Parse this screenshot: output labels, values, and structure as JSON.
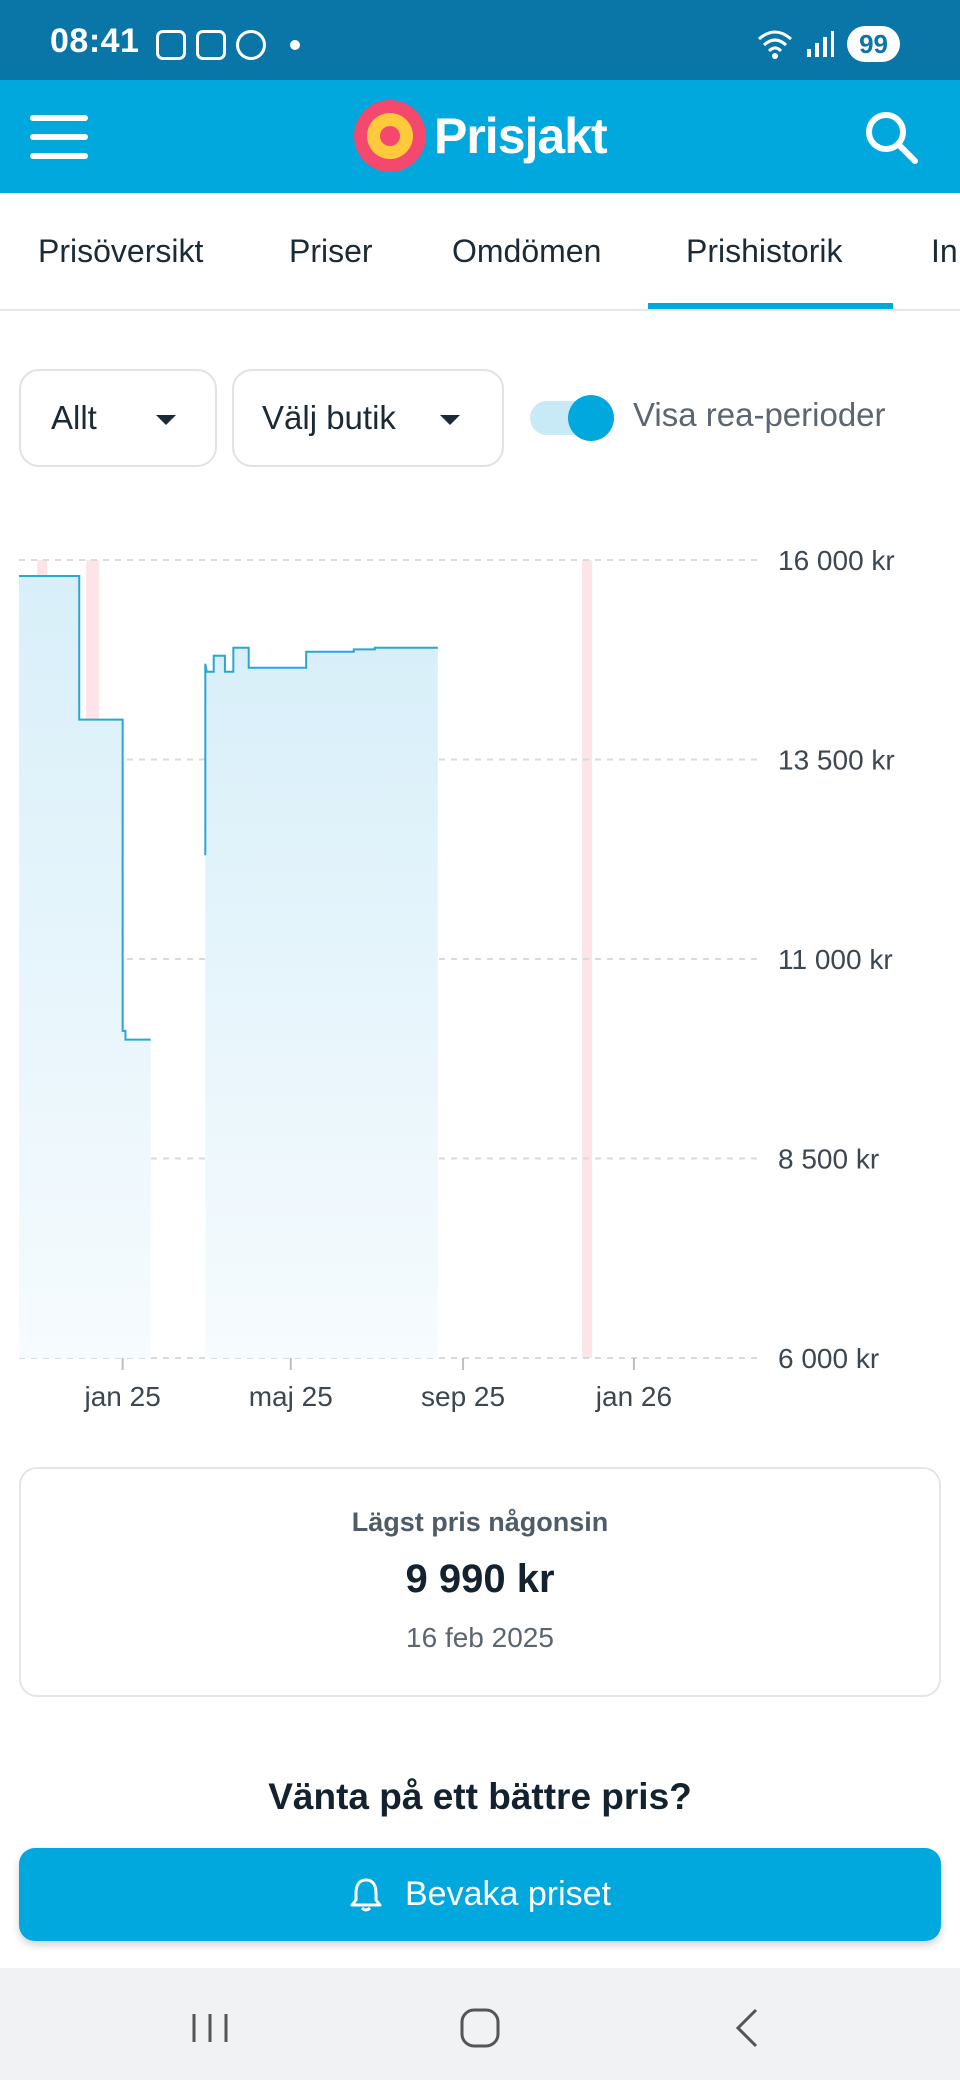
{
  "status_bar": {
    "time": "08:41",
    "battery": "99"
  },
  "header": {
    "logo_text": "Prisjakt",
    "menu_icon": "hamburger-icon",
    "search_icon": "search-icon"
  },
  "tabs": [
    {
      "label": "Prisöversikt",
      "active": false
    },
    {
      "label": "Priser",
      "active": false
    },
    {
      "label": "Omdömen",
      "active": false
    },
    {
      "label": "Prishistorik",
      "active": true
    },
    {
      "label": "In",
      "active": false
    }
  ],
  "filters": {
    "period": "Allt",
    "store": "Välj butik",
    "toggle_label": "Visa rea-perioder",
    "toggle_on": true
  },
  "chart_data": {
    "type": "line",
    "y_tick_labels": [
      "16 000 kr",
      "13 500 kr",
      "11 000 kr",
      "8 500 kr",
      "6 000 kr"
    ],
    "ylim": [
      6000,
      16000
    ],
    "x_tick_labels": [
      "jan 25",
      "maj 25",
      "sep 25",
      "jan 26"
    ],
    "series": [
      {
        "x": [
          "2024-10-19",
          "2024-12-01",
          "2024-12-01",
          "2025-01-01",
          "2025-01-01",
          "2025-01-03",
          "2025-01-03",
          "2025-01-21",
          "2025-03-01",
          "2025-03-01",
          "2025-03-02",
          "2025-03-07",
          "2025-03-07",
          "2025-03-15",
          "2025-03-15",
          "2025-03-21",
          "2025-03-21",
          "2025-04-01",
          "2025-04-01",
          "2025-04-06",
          "2025-04-06",
          "2025-05-12",
          "2025-05-12",
          "2025-06-15",
          "2025-06-15",
          "2025-06-30",
          "2025-06-30",
          "2025-08-14"
        ],
        "y": [
          15800,
          15800,
          14000,
          14000,
          10100,
          10100,
          9990,
          9990,
          12300,
          14700,
          14600,
          14600,
          14800,
          14800,
          14600,
          14600,
          14900,
          14900,
          14650,
          14650,
          14650,
          14650,
          14850,
          14850,
          14880,
          14880,
          14900,
          14900
        ]
      }
    ],
    "gaps": [
      [
        "2025-01-21",
        "2025-03-01"
      ]
    ],
    "sale_periods": [
      [
        "2024-11-01",
        "2024-11-07"
      ],
      [
        "2024-12-06",
        "2024-12-15"
      ],
      [
        "2025-11-25",
        "2025-11-30"
      ]
    ],
    "grid": true
  },
  "lowest_price": {
    "title": "Lägst pris någonsin",
    "value": "9 990 kr",
    "date": "16 feb 2025"
  },
  "wait_title": "Vänta på ett bättre pris?",
  "watch_button": "Bevaka priset",
  "colors": {
    "brand": "#00a8de",
    "status_bar": "#0a76a8",
    "sale_band": "#fde4e8",
    "line": "#2aa6d0"
  }
}
